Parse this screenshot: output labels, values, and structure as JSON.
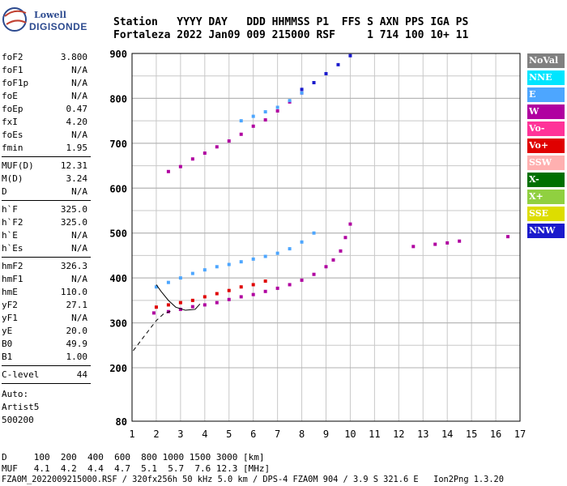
{
  "logo": {
    "top": "Lowell",
    "bottom": "DIGISONDE"
  },
  "header": {
    "line1": "Station   YYYY DAY   DDD HHMMSS P1  FFS S AXN PPS IGA PS",
    "line2": "Fortaleza 2022 Jan09 009 215000 RSF     1 714 100 10+ 11"
  },
  "sidebar": {
    "group1": [
      {
        "label": "foF2",
        "value": "3.800"
      },
      {
        "label": "foF1",
        "value": "N/A"
      },
      {
        "label": "foF1p",
        "value": "N/A"
      },
      {
        "label": "foE",
        "value": "N/A"
      },
      {
        "label": "foEp",
        "value": "0.47"
      },
      {
        "label": "fxI",
        "value": "4.20"
      },
      {
        "label": "foEs",
        "value": "N/A"
      },
      {
        "label": "fmin",
        "value": "1.95"
      }
    ],
    "group2": [
      {
        "label": "MUF(D)",
        "value": "12.31"
      },
      {
        "label": "M(D)",
        "value": "3.24"
      },
      {
        "label": "D",
        "value": "N/A"
      }
    ],
    "group3": [
      {
        "label": "h`F",
        "value": "325.0"
      },
      {
        "label": "h`F2",
        "value": "325.0"
      },
      {
        "label": "h`E",
        "value": "N/A"
      },
      {
        "label": "h`Es",
        "value": "N/A"
      }
    ],
    "group4": [
      {
        "label": "hmF2",
        "value": "326.3"
      },
      {
        "label": "hmF1",
        "value": "N/A"
      },
      {
        "label": "hmE",
        "value": "110.0"
      },
      {
        "label": "yF2",
        "value": "27.1"
      },
      {
        "label": "yF1",
        "value": "N/A"
      },
      {
        "label": "yE",
        "value": "20.0"
      },
      {
        "label": "B0",
        "value": "49.9"
      },
      {
        "label": "B1",
        "value": "1.00"
      }
    ],
    "group5": [
      {
        "label": "C-level",
        "value": "44"
      }
    ],
    "auto": [
      "Auto:",
      "Artist5",
      "500200"
    ]
  },
  "legend": [
    {
      "label": "NoVal",
      "color": "#808080"
    },
    {
      "label": "NNE",
      "color": "#00e5ff"
    },
    {
      "label": "E",
      "color": "#4da6ff"
    },
    {
      "label": "W",
      "color": "#b000a0"
    },
    {
      "label": "Vo-",
      "color": "#ff3399"
    },
    {
      "label": "Vo+",
      "color": "#e00000"
    },
    {
      "label": "SSW",
      "color": "#ffb0b0"
    },
    {
      "label": "X-",
      "color": "#007000"
    },
    {
      "label": "X+",
      "color": "#90d040"
    },
    {
      "label": "SSE",
      "color": "#dddd00"
    },
    {
      "label": "NNW",
      "color": "#1a1acc"
    }
  ],
  "footer": {
    "line1": "D     100  200  400  600  800 1000 1500 3000 [km]",
    "line2": "MUF   4.1  4.2  4.4  4.7  5.1  5.7  7.6 12.3 [MHz]",
    "line3": "FZA0M_2022009215000.RSF / 320fx256h 50 kHz 5.0 km / DPS-4 FZA0M 904 / 3.9 S 321.6 E   Ion2Png 1.3.20"
  },
  "chart_data": {
    "type": "scatter",
    "xlim": [
      1,
      17
    ],
    "ylim": [
      80,
      900
    ],
    "xticks": [
      "1",
      "2",
      "3",
      "4",
      "5",
      "6",
      "7",
      "8",
      "9",
      "10",
      "11",
      "12",
      "13",
      "14",
      "15",
      "16",
      "17"
    ],
    "yticks": [
      "80",
      "200",
      "300",
      "400",
      "500",
      "600",
      "700",
      "800",
      "900"
    ],
    "series": [
      {
        "name": "W",
        "color": "#b000a0",
        "points": [
          [
            1.9,
            322
          ],
          [
            2.5,
            325
          ],
          [
            3,
            330
          ],
          [
            3.5,
            336
          ],
          [
            4,
            340
          ],
          [
            4.5,
            345
          ],
          [
            5,
            352
          ],
          [
            5.5,
            358
          ],
          [
            6,
            363
          ],
          [
            6.5,
            370
          ],
          [
            7,
            377
          ],
          [
            7.5,
            385
          ],
          [
            8,
            395
          ],
          [
            8.5,
            408
          ],
          [
            9,
            425
          ],
          [
            9.3,
            440
          ],
          [
            9.6,
            460
          ],
          [
            9.8,
            490
          ],
          [
            10,
            520
          ]
        ]
      },
      {
        "name": "Vo+",
        "color": "#e00000",
        "points": [
          [
            2,
            335
          ],
          [
            2.5,
            340
          ],
          [
            3,
            345
          ],
          [
            3.5,
            350
          ],
          [
            4,
            358
          ],
          [
            4.5,
            365
          ],
          [
            5,
            372
          ],
          [
            5.5,
            380
          ],
          [
            6,
            385
          ],
          [
            6.5,
            393
          ]
        ]
      },
      {
        "name": "E",
        "color": "#4da6ff",
        "points": [
          [
            2,
            380
          ],
          [
            2.5,
            390
          ],
          [
            3,
            400
          ],
          [
            3.5,
            410
          ],
          [
            4,
            418
          ],
          [
            4.5,
            425
          ],
          [
            5,
            430
          ],
          [
            5.5,
            436
          ],
          [
            6,
            442
          ],
          [
            6.5,
            448
          ],
          [
            7,
            455
          ],
          [
            7.5,
            465
          ],
          [
            8,
            480
          ],
          [
            8.5,
            500
          ]
        ]
      },
      {
        "name": "W",
        "color": "#b000a0",
        "points": [
          [
            2.5,
            637
          ],
          [
            3,
            648
          ],
          [
            3.5,
            665
          ],
          [
            4,
            678
          ],
          [
            4.5,
            692
          ],
          [
            5,
            705
          ],
          [
            5.5,
            720
          ],
          [
            6,
            738
          ],
          [
            6.5,
            752
          ],
          [
            7,
            772
          ],
          [
            7.5,
            792
          ],
          [
            8,
            812
          ]
        ]
      },
      {
        "name": "NNW",
        "color": "#1a1acc",
        "points": [
          [
            8,
            820
          ],
          [
            8.5,
            835
          ],
          [
            9,
            855
          ],
          [
            9.5,
            875
          ],
          [
            10,
            895
          ]
        ]
      },
      {
        "name": "E",
        "color": "#4da6ff",
        "points": [
          [
            5.5,
            750
          ],
          [
            6,
            760
          ],
          [
            6.5,
            770
          ],
          [
            7,
            780
          ],
          [
            7.5,
            795
          ],
          [
            8,
            812
          ]
        ]
      },
      {
        "name": "W",
        "color": "#b000a0",
        "points": [
          [
            12.6,
            470
          ],
          [
            13.5,
            475
          ],
          [
            14,
            478
          ],
          [
            14.5,
            482
          ],
          [
            16.5,
            492
          ]
        ]
      }
    ]
  }
}
